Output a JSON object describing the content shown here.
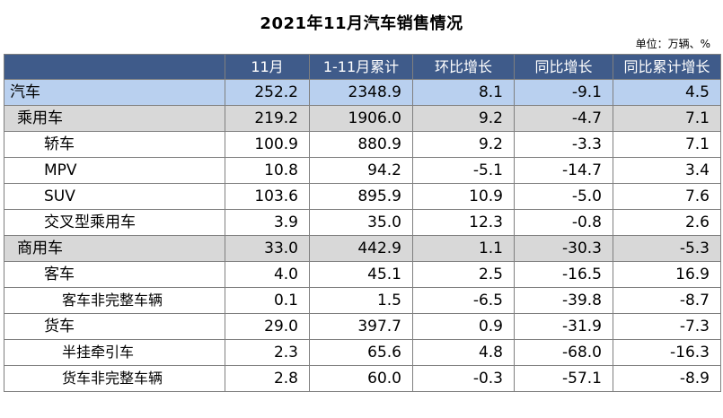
{
  "title": "2021年11月汽车销售情况",
  "unit": "单位：万辆、%",
  "table": {
    "headers": [
      "",
      "11月",
      "1-11月累计",
      "环比增长",
      "同比增长",
      "同比累计增长"
    ],
    "rows": [
      {
        "level": 0,
        "name": "汽车",
        "values": [
          "252.2",
          "2348.9",
          "8.1",
          "-9.1",
          "4.5"
        ]
      },
      {
        "level": 1,
        "name": "乘用车",
        "values": [
          "219.2",
          "1906.0",
          "9.2",
          "-4.7",
          "7.1"
        ]
      },
      {
        "level": 2,
        "name": "轿车",
        "values": [
          "100.9",
          "880.9",
          "9.2",
          "-3.3",
          "7.1"
        ]
      },
      {
        "level": 2,
        "name": "MPV",
        "values": [
          "10.8",
          "94.2",
          "-5.1",
          "-14.7",
          "3.4"
        ]
      },
      {
        "level": 2,
        "name": "SUV",
        "values": [
          "103.6",
          "895.9",
          "10.9",
          "-5.0",
          "7.6"
        ]
      },
      {
        "level": 2,
        "name": "交叉型乘用车",
        "values": [
          "3.9",
          "35.0",
          "12.3",
          "-0.8",
          "2.6"
        ]
      },
      {
        "level": 1,
        "name": "商用车",
        "values": [
          "33.0",
          "442.9",
          "1.1",
          "-30.3",
          "-5.3"
        ]
      },
      {
        "level": 2,
        "name": "客车",
        "values": [
          "4.0",
          "45.1",
          "2.5",
          "-16.5",
          "16.9"
        ]
      },
      {
        "level": 3,
        "name": "客车非完整车辆",
        "values": [
          "0.1",
          "1.5",
          "-6.5",
          "-39.8",
          "-8.7"
        ]
      },
      {
        "level": 2,
        "name": "货车",
        "values": [
          "29.0",
          "397.7",
          "0.9",
          "-31.9",
          "-7.3"
        ]
      },
      {
        "level": 3,
        "name": "半挂牵引车",
        "values": [
          "2.3",
          "65.6",
          "4.8",
          "-68.0",
          "-16.3"
        ]
      },
      {
        "level": 3,
        "name": "货车非完整车辆",
        "values": [
          "2.8",
          "60.0",
          "-0.3",
          "-57.1",
          "-8.9"
        ]
      }
    ]
  }
}
